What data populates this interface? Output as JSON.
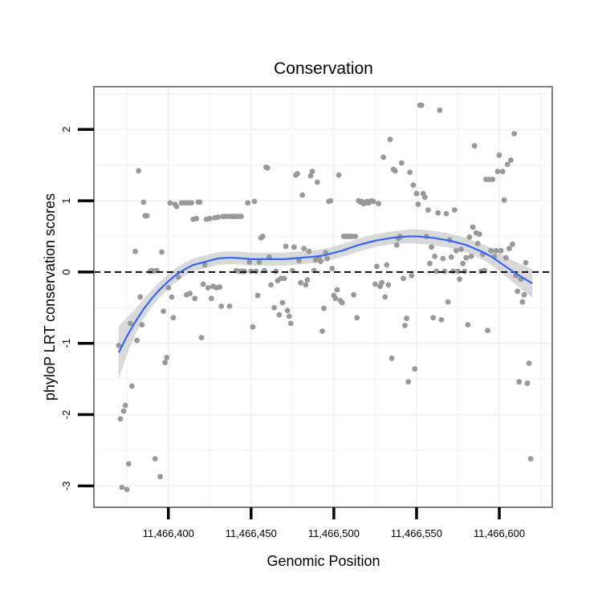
{
  "chart_data": {
    "type": "scatter",
    "title": "Conservation",
    "xlabel": "Genomic Position",
    "ylabel": "phyloP LRT conservation scores",
    "xlim": [
      11466355,
      11466632
    ],
    "ylim": [
      -3.3,
      2.6
    ],
    "x_ticks": [
      11466400,
      11466450,
      11466500,
      11466550,
      11466600
    ],
    "x_tick_labels": [
      "11,466,400",
      "11,466,450",
      "11,466,500",
      "11,466,550",
      "11,466,600"
    ],
    "y_ticks": [
      -3,
      -2,
      -1,
      0,
      1,
      2
    ],
    "y_tick_labels": [
      "-3",
      "-2",
      "-1",
      "0",
      "1",
      "2"
    ],
    "reference_line": {
      "y": 0,
      "style": "dashed"
    },
    "colors": {
      "points": "#999999",
      "smooth_line": "#3366ff",
      "ribbon": "#cccccc",
      "grid": "#f3f3f3",
      "frame": "#7f7f7f"
    },
    "points": [
      [
        11466370,
        -1.03
      ],
      [
        11466371,
        -2.06
      ],
      [
        11466372,
        -3.02
      ],
      [
        11466373,
        -1.95
      ],
      [
        11466374,
        -1.87
      ],
      [
        11466375,
        -3.05
      ],
      [
        11466376,
        -2.69
      ],
      [
        11466377,
        -0.72
      ],
      [
        11466378,
        -1.6
      ],
      [
        11466380,
        0.29
      ],
      [
        11466381,
        -0.96
      ],
      [
        11466382,
        1.42
      ],
      [
        11466383,
        -0.35
      ],
      [
        11466384,
        -0.74
      ],
      [
        11466385,
        0.98
      ],
      [
        11466386,
        0.79
      ],
      [
        11466387,
        0.79
      ],
      [
        11466389,
        0.01
      ],
      [
        11466390,
        0.02
      ],
      [
        11466391,
        0.01
      ],
      [
        11466392,
        -2.62
      ],
      [
        11466393,
        0.02
      ],
      [
        11466395,
        -2.87
      ],
      [
        11466396,
        0.28
      ],
      [
        11466397,
        -0.55
      ],
      [
        11466398,
        -1.27
      ],
      [
        11466399,
        -1.2
      ],
      [
        11466400,
        -0.22
      ],
      [
        11466401,
        0.97
      ],
      [
        11466402,
        -0.35
      ],
      [
        11466403,
        -0.64
      ],
      [
        11466404,
        0.95
      ],
      [
        11466405,
        0.92
      ],
      [
        11466406,
        -0.07
      ],
      [
        11466408,
        0.97
      ],
      [
        11466410,
        0.97
      ],
      [
        11466411,
        -0.32
      ],
      [
        11466412,
        0.97
      ],
      [
        11466413,
        -0.3
      ],
      [
        11466414,
        0.97
      ],
      [
        11466415,
        0.74
      ],
      [
        11466416,
        -0.37
      ],
      [
        11466417,
        0.75
      ],
      [
        11466418,
        0.98
      ],
      [
        11466419,
        0.98
      ],
      [
        11466420,
        -0.92
      ],
      [
        11466421,
        -0.17
      ],
      [
        11466422,
        0.1
      ],
      [
        11466423,
        0.74
      ],
      [
        11466424,
        -0.22
      ],
      [
        11466425,
        0.75
      ],
      [
        11466426,
        -0.37
      ],
      [
        11466427,
        -0.2
      ],
      [
        11466428,
        0.76
      ],
      [
        11466429,
        -0.22
      ],
      [
        11466430,
        0.77
      ],
      [
        11466431,
        -0.21
      ],
      [
        11466432,
        -0.48
      ],
      [
        11466433,
        0.78
      ],
      [
        11466434,
        0.78
      ],
      [
        11466436,
        0.78
      ],
      [
        11466437,
        -0.48
      ],
      [
        11466438,
        0.78
      ],
      [
        11466439,
        0.78
      ],
      [
        11466440,
        0.78
      ],
      [
        11466441,
        0.02
      ],
      [
        11466442,
        0.78
      ],
      [
        11466443,
        0.01
      ],
      [
        11466444,
        0.78
      ],
      [
        11466445,
        0.01
      ],
      [
        11466446,
        0.01
      ],
      [
        11466448,
        0.97
      ],
      [
        11466449,
        0.14
      ],
      [
        11466450,
        0.01
      ],
      [
        11466451,
        -0.77
      ],
      [
        11466452,
        0.99
      ],
      [
        11466453,
        0.01
      ],
      [
        11466454,
        -0.33
      ],
      [
        11466455,
        0.14
      ],
      [
        11466456,
        0.48
      ],
      [
        11466457,
        0.5
      ],
      [
        11466458,
        0.02
      ],
      [
        11466459,
        1.47
      ],
      [
        11466460,
        1.46
      ],
      [
        11466461,
        0.21
      ],
      [
        11466462,
        -0.18
      ],
      [
        11466464,
        -0.5
      ],
      [
        11466465,
        0.01
      ],
      [
        11466466,
        -0.12
      ],
      [
        11466467,
        -0.6
      ],
      [
        11466468,
        -0.09
      ],
      [
        11466469,
        -0.43
      ],
      [
        11466470,
        -0.09
      ],
      [
        11466471,
        0.36
      ],
      [
        11466472,
        -0.54
      ],
      [
        11466473,
        -0.62
      ],
      [
        11466474,
        -0.72
      ],
      [
        11466475,
        0.02
      ],
      [
        11466476,
        0.35
      ],
      [
        11466477,
        1.36
      ],
      [
        11466478,
        1.38
      ],
      [
        11466479,
        0.16
      ],
      [
        11466480,
        -0.15
      ],
      [
        11466481,
        1.08
      ],
      [
        11466482,
        0.33
      ],
      [
        11466483,
        -0.18
      ],
      [
        11466484,
        -0.11
      ],
      [
        11466485,
        0.29
      ],
      [
        11466486,
        1.35
      ],
      [
        11466487,
        1.41
      ],
      [
        11466488,
        0.02
      ],
      [
        11466489,
        0.17
      ],
      [
        11466490,
        1.26
      ],
      [
        11466491,
        0.2
      ],
      [
        11466492,
        0.15
      ],
      [
        11466493,
        -0.83
      ],
      [
        11466494,
        -0.51
      ],
      [
        11466495,
        0.27
      ],
      [
        11466496,
        0.19
      ],
      [
        11466497,
        0.99
      ],
      [
        11466498,
        1.0
      ],
      [
        11466499,
        0.05
      ],
      [
        11466500,
        -0.33
      ],
      [
        11466501,
        -0.37
      ],
      [
        11466502,
        -0.25
      ],
      [
        11466503,
        1.36
      ],
      [
        11466504,
        -0.4
      ],
      [
        11466505,
        -0.43
      ],
      [
        11466506,
        0.5
      ],
      [
        11466507,
        0.5
      ],
      [
        11466508,
        0.5
      ],
      [
        11466509,
        0.5
      ],
      [
        11466510,
        0.5
      ],
      [
        11466511,
        0.5
      ],
      [
        11466512,
        -0.32
      ],
      [
        11466513,
        0.5
      ],
      [
        11466514,
        -0.64
      ],
      [
        11466515,
        1.0
      ],
      [
        11466516,
        0.98
      ],
      [
        11466517,
        0.99
      ],
      [
        11466518,
        0.96
      ],
      [
        11466519,
        0.97
      ],
      [
        11466520,
        0.99
      ],
      [
        11466521,
        0.97
      ],
      [
        11466522,
        0.99
      ],
      [
        11466523,
        1.0
      ],
      [
        11466524,
        0.99
      ],
      [
        11466525,
        -0.17
      ],
      [
        11466526,
        0.08
      ],
      [
        11466527,
        0.96
      ],
      [
        11466528,
        -0.2
      ],
      [
        11466529,
        -0.15
      ],
      [
        11466530,
        1.61
      ],
      [
        11466531,
        -0.35
      ],
      [
        11466532,
        0.1
      ],
      [
        11466533,
        -0.18
      ],
      [
        11466534,
        1.86
      ],
      [
        11466535,
        -1.21
      ],
      [
        11466536,
        1.44
      ],
      [
        11466537,
        1.42
      ],
      [
        11466538,
        0.38
      ],
      [
        11466539,
        0.47
      ],
      [
        11466540,
        0.5
      ],
      [
        11466541,
        1.53
      ],
      [
        11466542,
        -0.09
      ],
      [
        11466543,
        -0.75
      ],
      [
        11466544,
        -0.65
      ],
      [
        11466545,
        -1.54
      ],
      [
        11466546,
        1.4
      ],
      [
        11466547,
        -0.05
      ],
      [
        11466548,
        1.22
      ],
      [
        11466549,
        -1.36
      ],
      [
        11466550,
        1.1
      ],
      [
        11466551,
        0.95
      ],
      [
        11466552,
        2.34
      ],
      [
        11466553,
        2.34
      ],
      [
        11466554,
        1.1
      ],
      [
        11466555,
        1.05
      ],
      [
        11466556,
        0.5
      ],
      [
        11466557,
        0.87
      ],
      [
        11466558,
        0.12
      ],
      [
        11466559,
        0.35
      ],
      [
        11466560,
        -0.64
      ],
      [
        11466561,
        0.22
      ],
      [
        11466562,
        0.01
      ],
      [
        11466563,
        0.83
      ],
      [
        11466564,
        2.27
      ],
      [
        11466565,
        -0.67
      ],
      [
        11466566,
        0.19
      ],
      [
        11466567,
        0.01
      ],
      [
        11466568,
        0.82
      ],
      [
        11466569,
        -0.42
      ],
      [
        11466570,
        0.45
      ],
      [
        11466571,
        0.21
      ],
      [
        11466572,
        0.01
      ],
      [
        11466573,
        0.87
      ],
      [
        11466574,
        0.3
      ],
      [
        11466575,
        0.01
      ],
      [
        11466576,
        -0.1
      ],
      [
        11466577,
        0.32
      ],
      [
        11466578,
        0.12
      ],
      [
        11466579,
        0.01
      ],
      [
        11466580,
        0.2
      ],
      [
        11466581,
        -0.74
      ],
      [
        11466582,
        0.49
      ],
      [
        11466583,
        0.22
      ],
      [
        11466584,
        0.63
      ],
      [
        11466585,
        1.77
      ],
      [
        11466586,
        0.55
      ],
      [
        11466587,
        0.4
      ],
      [
        11466588,
        0.53
      ],
      [
        11466589,
        0.01
      ],
      [
        11466590,
        0.25
      ],
      [
        11466591,
        0.02
      ],
      [
        11466592,
        1.3
      ],
      [
        11466593,
        -0.82
      ],
      [
        11466594,
        1.3
      ],
      [
        11466595,
        0.3
      ],
      [
        11466596,
        1.3
      ],
      [
        11466597,
        0.22
      ],
      [
        11466598,
        0.3
      ],
      [
        11466599,
        1.41
      ],
      [
        11466600,
        1.64
      ],
      [
        11466601,
        0.3
      ],
      [
        11466602,
        1.41
      ],
      [
        11466603,
        1.01
      ],
      [
        11466604,
        0.2
      ],
      [
        11466605,
        1.51
      ],
      [
        11466606,
        0.33
      ],
      [
        11466607,
        1.57
      ],
      [
        11466608,
        0.39
      ],
      [
        11466609,
        1.94
      ],
      [
        11466610,
        -0.05
      ],
      [
        11466611,
        -0.27
      ],
      [
        11466612,
        -1.54
      ],
      [
        11466613,
        -0.1
      ],
      [
        11466614,
        -0.42
      ],
      [
        11466615,
        -0.32
      ],
      [
        11466616,
        0.13
      ],
      [
        11466617,
        -1.56
      ],
      [
        11466618,
        -1.28
      ],
      [
        11466619,
        -2.62
      ]
    ],
    "smooth": [
      [
        11466370,
        -1.13
      ],
      [
        11466375,
        -0.9
      ],
      [
        11466380,
        -0.7
      ],
      [
        11466385,
        -0.52
      ],
      [
        11466390,
        -0.37
      ],
      [
        11466395,
        -0.24
      ],
      [
        11466400,
        -0.13
      ],
      [
        11466405,
        -0.03
      ],
      [
        11466410,
        0.04
      ],
      [
        11466415,
        0.1
      ],
      [
        11466420,
        0.13
      ],
      [
        11466425,
        0.16
      ],
      [
        11466430,
        0.19
      ],
      [
        11466435,
        0.2
      ],
      [
        11466440,
        0.2
      ],
      [
        11466445,
        0.19
      ],
      [
        11466450,
        0.18
      ],
      [
        11466455,
        0.18
      ],
      [
        11466460,
        0.18
      ],
      [
        11466465,
        0.18
      ],
      [
        11466470,
        0.18
      ],
      [
        11466475,
        0.19
      ],
      [
        11466480,
        0.2
      ],
      [
        11466485,
        0.21
      ],
      [
        11466490,
        0.22
      ],
      [
        11466495,
        0.24
      ],
      [
        11466500,
        0.27
      ],
      [
        11466505,
        0.3
      ],
      [
        11466510,
        0.34
      ],
      [
        11466515,
        0.38
      ],
      [
        11466520,
        0.41
      ],
      [
        11466525,
        0.44
      ],
      [
        11466530,
        0.46
      ],
      [
        11466535,
        0.48
      ],
      [
        11466540,
        0.49
      ],
      [
        11466545,
        0.5
      ],
      [
        11466550,
        0.5
      ],
      [
        11466555,
        0.49
      ],
      [
        11466560,
        0.48
      ],
      [
        11466565,
        0.46
      ],
      [
        11466570,
        0.44
      ],
      [
        11466575,
        0.41
      ],
      [
        11466580,
        0.38
      ],
      [
        11466585,
        0.33
      ],
      [
        11466590,
        0.28
      ],
      [
        11466595,
        0.22
      ],
      [
        11466600,
        0.14
      ],
      [
        11466605,
        0.06
      ],
      [
        11466610,
        -0.02
      ],
      [
        11466615,
        -0.09
      ],
      [
        11466620,
        -0.16
      ]
    ],
    "band_halfwidth": [
      0.37,
      0.26,
      0.18,
      0.14,
      0.12,
      0.11,
      0.1,
      0.1,
      0.09,
      0.09,
      0.09,
      0.09,
      0.09,
      0.09,
      0.09,
      0.09,
      0.09,
      0.09,
      0.09,
      0.09,
      0.09,
      0.09,
      0.09,
      0.09,
      0.09,
      0.09,
      0.09,
      0.09,
      0.09,
      0.09,
      0.09,
      0.09,
      0.09,
      0.09,
      0.09,
      0.1,
      0.1,
      0.1,
      0.1,
      0.1,
      0.1,
      0.1,
      0.1,
      0.1,
      0.11,
      0.12,
      0.13,
      0.14,
      0.16,
      0.18,
      0.2
    ]
  }
}
